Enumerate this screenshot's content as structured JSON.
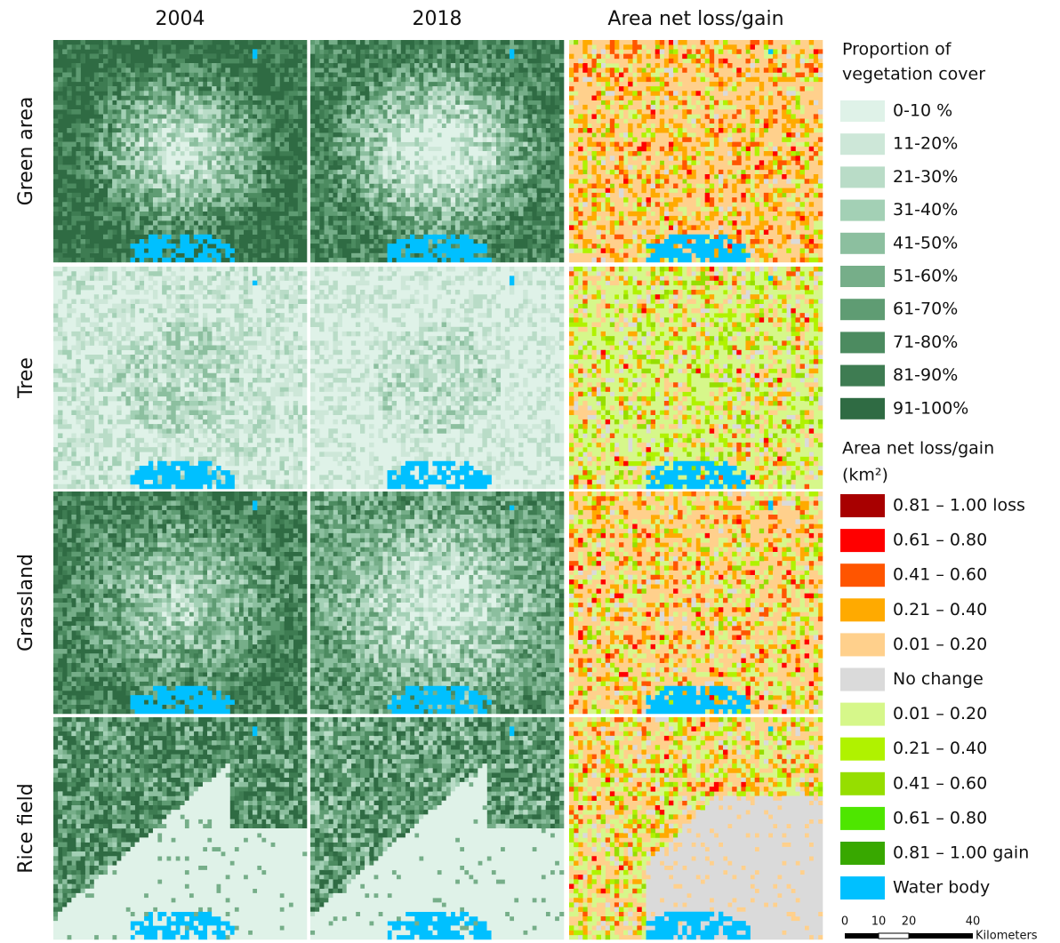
{
  "figure": {
    "columns": [
      "2004",
      "2018",
      "Area net loss/gain"
    ],
    "rows": [
      "Green area",
      "Tree",
      "Grassland",
      "Rice field"
    ],
    "vegetation_legend": {
      "title_lines": [
        "Proportion of",
        "vegetation cover"
      ],
      "items": [
        {
          "label": "0-10 %",
          "color": "#dff2e8"
        },
        {
          "label": "11-20%",
          "color": "#cde7d8"
        },
        {
          "label": "21-30%",
          "color": "#b9dcc7"
        },
        {
          "label": "31-40%",
          "color": "#a3d0b5"
        },
        {
          "label": "41-50%",
          "color": "#8cbf9f"
        },
        {
          "label": "51-60%",
          "color": "#76ae89"
        },
        {
          "label": "61-70%",
          "color": "#5f9c73"
        },
        {
          "label": "71-80%",
          "color": "#4c8b60"
        },
        {
          "label": "81-90%",
          "color": "#3e7c52"
        },
        {
          "label": "91-100%",
          "color": "#2f6b43"
        }
      ]
    },
    "change_legend": {
      "title_lines": [
        "Area net loss/gain",
        "(km²)"
      ],
      "items": [
        {
          "label": "0.81 – 1.00 loss",
          "color": "#a80000"
        },
        {
          "label": "0.61 – 0.80",
          "color": "#ff0000"
        },
        {
          "label": "0.41 – 0.60",
          "color": "#ff5500"
        },
        {
          "label": "0.21 – 0.40",
          "color": "#ffaa00"
        },
        {
          "label": "0.01 – 0.20",
          "color": "#ffd08c"
        },
        {
          "label": "No change",
          "color": "#dadada"
        },
        {
          "label": "0.01 – 0.20",
          "color": "#d6f78a"
        },
        {
          "label": "0.21 – 0.40",
          "color": "#b0f200"
        },
        {
          "label": "0.41 – 0.60",
          "color": "#96de00"
        },
        {
          "label": "0.61 – 0.80",
          "color": "#4ee600"
        },
        {
          "label": "0.81 – 1.00 gain",
          "color": "#38a800"
        },
        {
          "label": "Water body",
          "color": "#00c0ff"
        }
      ]
    },
    "scale_bar": {
      "ticks": [
        "0",
        "10",
        "20",
        "40"
      ],
      "unit": "Kilometers"
    }
  }
}
